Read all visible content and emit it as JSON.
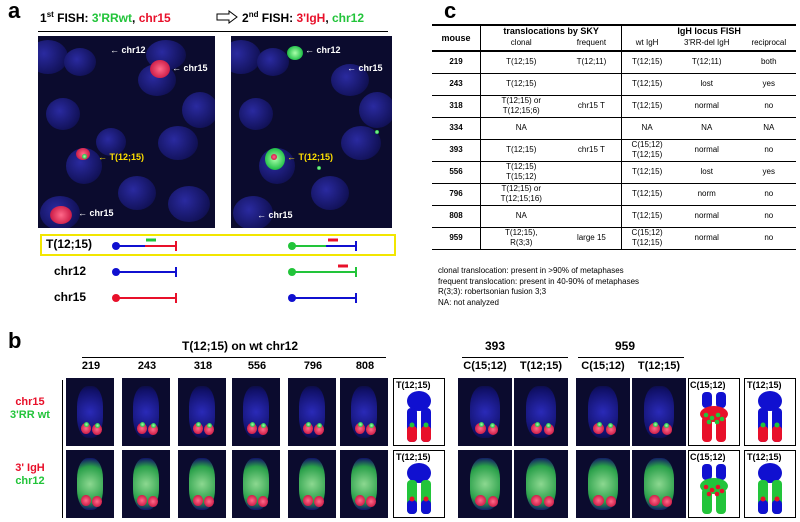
{
  "panel_a": {
    "letter": "a",
    "header_first_prefix": "1",
    "header_first_sup": "st",
    "header_first_text": " FISH: ",
    "header_first_green": "3'RRwt",
    "header_first_sep": ", ",
    "header_first_red": "chr15",
    "header_second_prefix": "2",
    "header_second_sup": "nd",
    "header_second_text": " FISH: ",
    "header_second_red": "3'IgH",
    "header_second_sep": ", ",
    "header_second_green": "chr12",
    "left_labels": {
      "chr12": "chr12",
      "chr15_top": "chr15",
      "trans": "T(12;15)",
      "chr15_bot": "chr15"
    },
    "right_labels": {
      "chr12": "chr12",
      "chr15_top": "chr15",
      "trans": "T(12;15)",
      "chr15_bot": "chr15"
    },
    "schematic_rows": [
      "T(12;15)",
      "chr12",
      "chr15"
    ]
  },
  "panel_b": {
    "letter": "b",
    "group1_title": "T(12;15) on wt chr12",
    "group1_cols": [
      "219",
      "243",
      "318",
      "556",
      "796",
      "808"
    ],
    "group2_title": "393",
    "group2_cols": [
      "C(15;12)",
      "T(12;15)"
    ],
    "group3_title": "959",
    "group3_cols": [
      "C(15;12)",
      "T(12;15)"
    ],
    "row1_label_red": "chr15",
    "row1_label_green": "3'RR wt",
    "row2_label_red": "3' IgH",
    "row2_label_green": "chr12",
    "diagram_trans": "T(12;15)",
    "diagram_c": "C(15;12)"
  },
  "panel_c": {
    "letter": "c",
    "header_top": [
      "mouse",
      "translocations by SKY",
      "IgH locus FISH"
    ],
    "header_sub": [
      "clonal",
      "frequent",
      "wt IgH",
      "3'RR-del IgH",
      "reciprocal"
    ],
    "rows": [
      {
        "mouse": "219",
        "clonal": "T(12;15)",
        "frequent": "T(12;11)",
        "wt": "T(12;15)",
        "del": "T(12;11)",
        "recip": "both"
      },
      {
        "mouse": "243",
        "clonal": "T(12;15)",
        "frequent": "",
        "wt": "T(12;15)",
        "del": "lost",
        "recip": "yes"
      },
      {
        "mouse": "318",
        "clonal": "T(12;15) or\nT(12;15;6)",
        "frequent": "chr15 T",
        "wt": "T(12;15)",
        "del": "normal",
        "recip": "no"
      },
      {
        "mouse": "334",
        "clonal": "NA",
        "frequent": "",
        "wt": "NA",
        "del": "NA",
        "recip": "NA"
      },
      {
        "mouse": "393",
        "clonal": "T(12;15)",
        "frequent": "chr15 T",
        "wt": "C(15;12)\nT(12;15)",
        "del": "normal",
        "recip": "no"
      },
      {
        "mouse": "556",
        "clonal": "T(12;15)\nT(15;12)",
        "frequent": "",
        "wt": "T(12;15)",
        "del": "lost",
        "recip": "yes"
      },
      {
        "mouse": "796",
        "clonal": "T(12;15) or\nT(12;15;16)",
        "frequent": "",
        "wt": "T(12;15)",
        "del": "norm",
        "recip": "no"
      },
      {
        "mouse": "808",
        "clonal": "NA",
        "frequent": "",
        "wt": "T(12;15)",
        "del": "normal",
        "recip": "no"
      },
      {
        "mouse": "959",
        "clonal": "T(12;15),\nR(3;3)",
        "frequent": "large 15",
        "wt": "C(15;12)\nT(12;15)",
        "del": "normal",
        "recip": "no"
      }
    ],
    "notes": [
      "clonal translocation: present in  >90% of metaphases",
      "frequent translocation: present in 40-90% of metaphases",
      "R(3;3): robertsonian fusion 3;3",
      "NA: not analyzed"
    ]
  },
  "colors": {
    "red": "#e8102a",
    "green": "#22c43a",
    "blue": "#1010d0",
    "yellow": "#f2e600"
  }
}
